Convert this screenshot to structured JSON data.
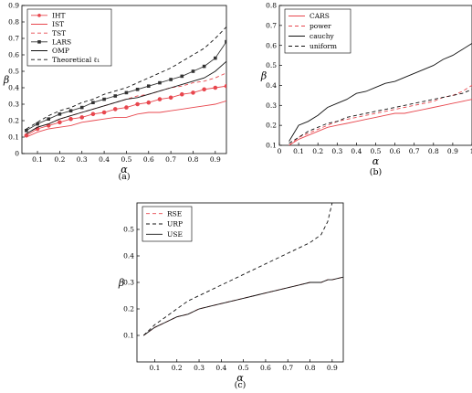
{
  "chart_data": [
    {
      "id": "a",
      "type": "line",
      "caption": "(a)",
      "xlabel": "α",
      "ylabel": "β",
      "xlim": [
        0.03,
        0.95
      ],
      "ylim": [
        0,
        0.9
      ],
      "xticks": [
        "0.1",
        "0.2",
        "0.3",
        "0.4",
        "0.5",
        "0.6",
        "0.7",
        "0.8",
        "0.9"
      ],
      "xtick_values": [
        0.1,
        0.2,
        0.3,
        0.4,
        0.5,
        0.6,
        0.7,
        0.8,
        0.9
      ],
      "yticks": [
        "0",
        "0.1",
        "0.2",
        "0.3",
        "0.4",
        "0.5",
        "0.6",
        "0.7",
        "0.8",
        "0.9"
      ],
      "ytick_values": [
        0,
        0.1,
        0.2,
        0.3,
        0.4,
        0.5,
        0.6,
        0.7,
        0.8,
        0.9
      ],
      "grid": false,
      "legend_position": "top-left",
      "x": [
        0.05,
        0.1,
        0.15,
        0.2,
        0.25,
        0.3,
        0.35,
        0.4,
        0.45,
        0.5,
        0.55,
        0.6,
        0.65,
        0.7,
        0.75,
        0.8,
        0.85,
        0.9,
        0.95
      ],
      "series": [
        {
          "name": "IHT",
          "color": "#e8474e",
          "dash": "",
          "marker": "circle",
          "values": [
            0.11,
            0.15,
            0.17,
            0.19,
            0.21,
            0.22,
            0.24,
            0.25,
            0.27,
            0.28,
            0.3,
            0.31,
            0.33,
            0.34,
            0.36,
            0.37,
            0.39,
            0.4,
            0.41
          ]
        },
        {
          "name": "IST",
          "color": "#e8474e",
          "dash": "",
          "marker": "",
          "values": [
            0.1,
            0.13,
            0.15,
            0.16,
            0.17,
            0.19,
            0.2,
            0.21,
            0.22,
            0.22,
            0.24,
            0.25,
            0.25,
            0.26,
            0.27,
            0.28,
            0.29,
            0.3,
            0.32
          ]
        },
        {
          "name": "TST",
          "color": "#e8474e",
          "dash": "4,3",
          "marker": "",
          "values": [
            0.12,
            0.16,
            0.18,
            0.21,
            0.23,
            0.25,
            0.27,
            0.29,
            0.31,
            0.33,
            0.35,
            0.36,
            0.38,
            0.4,
            0.41,
            0.43,
            0.44,
            0.46,
            0.49
          ]
        },
        {
          "name": "LARS",
          "color": "#333333",
          "dash": "",
          "marker": "square",
          "values": [
            0.14,
            0.18,
            0.21,
            0.24,
            0.26,
            0.28,
            0.31,
            0.33,
            0.35,
            0.37,
            0.39,
            0.41,
            0.43,
            0.45,
            0.47,
            0.5,
            0.53,
            0.58,
            0.68
          ]
        },
        {
          "name": "OMP",
          "color": "#111111",
          "dash": "",
          "marker": "",
          "values": [
            0.12,
            0.16,
            0.18,
            0.21,
            0.23,
            0.25,
            0.27,
            0.29,
            0.31,
            0.33,
            0.34,
            0.36,
            0.38,
            0.4,
            0.42,
            0.44,
            0.46,
            0.5,
            0.56
          ]
        },
        {
          "name": "Theoretical ℓ₁",
          "color": "#111111",
          "dash": "4,3",
          "marker": "",
          "values": [
            0.15,
            0.19,
            0.23,
            0.26,
            0.28,
            0.31,
            0.33,
            0.36,
            0.38,
            0.4,
            0.43,
            0.46,
            0.49,
            0.52,
            0.56,
            0.6,
            0.64,
            0.7,
            0.77
          ]
        }
      ]
    },
    {
      "id": "b",
      "type": "line",
      "caption": "(b)",
      "xlabel": "α",
      "ylabel": "β",
      "xlim": [
        0,
        1
      ],
      "ylim": [
        0.1,
        0.8
      ],
      "xticks": [
        "0",
        "0.1",
        "0.2",
        "0.3",
        "0.4",
        "0.5",
        "0.6",
        "0.7",
        "0.8",
        "0.9",
        "1"
      ],
      "xtick_values": [
        0,
        0.1,
        0.2,
        0.3,
        0.4,
        0.5,
        0.6,
        0.7,
        0.8,
        0.9,
        1
      ],
      "yticks": [
        "0.1",
        "0.2",
        "0.3",
        "0.4",
        "0.5",
        "0.6",
        "0.7",
        "0.8"
      ],
      "ytick_values": [
        0.1,
        0.2,
        0.3,
        0.4,
        0.5,
        0.6,
        0.7,
        0.8
      ],
      "grid": false,
      "legend_position": "top-left",
      "x": [
        0.05,
        0.1,
        0.15,
        0.2,
        0.25,
        0.3,
        0.35,
        0.4,
        0.45,
        0.5,
        0.55,
        0.6,
        0.65,
        0.7,
        0.75,
        0.8,
        0.85,
        0.9,
        0.95,
        1.0
      ],
      "series": [
        {
          "name": "CARS",
          "color": "#e8474e",
          "dash": "",
          "marker": "",
          "values": [
            0.1,
            0.13,
            0.15,
            0.17,
            0.19,
            0.2,
            0.21,
            0.22,
            0.23,
            0.24,
            0.25,
            0.26,
            0.26,
            0.27,
            0.28,
            0.29,
            0.3,
            0.31,
            0.32,
            0.33
          ]
        },
        {
          "name": "power",
          "color": "#e8474e",
          "dash": "4,3",
          "marker": "",
          "values": [
            0.1,
            0.14,
            0.16,
            0.18,
            0.2,
            0.22,
            0.23,
            0.24,
            0.25,
            0.26,
            0.27,
            0.28,
            0.29,
            0.3,
            0.31,
            0.32,
            0.34,
            0.35,
            0.37,
            0.4
          ]
        },
        {
          "name": "cauchy",
          "color": "#111111",
          "dash": "",
          "marker": "",
          "values": [
            0.12,
            0.2,
            0.22,
            0.25,
            0.29,
            0.31,
            0.33,
            0.36,
            0.37,
            0.39,
            0.41,
            0.42,
            0.44,
            0.46,
            0.48,
            0.5,
            0.53,
            0.55,
            0.58,
            0.61
          ]
        },
        {
          "name": "uniform",
          "color": "#111111",
          "dash": "4,3",
          "marker": "",
          "values": [
            0.11,
            0.14,
            0.17,
            0.19,
            0.21,
            0.22,
            0.24,
            0.25,
            0.26,
            0.27,
            0.28,
            0.29,
            0.3,
            0.31,
            0.32,
            0.33,
            0.34,
            0.35,
            0.36,
            0.38
          ]
        }
      ]
    },
    {
      "id": "c",
      "type": "line",
      "caption": "(c)",
      "xlabel": "α",
      "ylabel": "β",
      "xlim": [
        0.02,
        0.95
      ],
      "ylim": [
        0,
        0.6
      ],
      "xticks": [
        "0.1",
        "0.2",
        "0.3",
        "0.4",
        "0.5",
        "0.6",
        "0.7",
        "0.8",
        "0.9"
      ],
      "xtick_values": [
        0.1,
        0.2,
        0.3,
        0.4,
        0.5,
        0.6,
        0.7,
        0.8,
        0.9
      ],
      "yticks": [
        "0.1",
        "0.2",
        "0.3",
        "0.4",
        "0.5"
      ],
      "ytick_values": [
        0.1,
        0.2,
        0.3,
        0.4,
        0.5
      ],
      "grid": false,
      "legend_position": "top-left",
      "x": [
        0.05,
        0.1,
        0.15,
        0.2,
        0.25,
        0.3,
        0.35,
        0.4,
        0.45,
        0.5,
        0.55,
        0.6,
        0.65,
        0.7,
        0.75,
        0.8,
        0.85,
        0.88,
        0.9,
        0.95
      ],
      "series": [
        {
          "name": "RSE",
          "color": "#e8474e",
          "dash": "4,3",
          "marker": "",
          "values": [
            0.1,
            0.13,
            0.15,
            0.17,
            0.18,
            0.2,
            0.21,
            0.22,
            0.23,
            0.24,
            0.25,
            0.26,
            0.27,
            0.28,
            0.29,
            0.3,
            0.3,
            0.31,
            0.31,
            0.32
          ]
        },
        {
          "name": "URP",
          "color": "#111111",
          "dash": "4,3",
          "marker": "",
          "values": [
            0.1,
            0.14,
            0.17,
            0.2,
            0.23,
            0.25,
            0.27,
            0.29,
            0.31,
            0.33,
            0.35,
            0.37,
            0.39,
            0.41,
            0.43,
            0.45,
            0.48,
            0.53,
            0.6,
            0.62
          ]
        },
        {
          "name": "USE",
          "color": "#111111",
          "dash": "",
          "marker": "",
          "values": [
            0.1,
            0.13,
            0.15,
            0.17,
            0.18,
            0.2,
            0.21,
            0.22,
            0.23,
            0.24,
            0.25,
            0.26,
            0.27,
            0.28,
            0.29,
            0.3,
            0.3,
            0.31,
            0.31,
            0.32
          ]
        }
      ]
    }
  ]
}
